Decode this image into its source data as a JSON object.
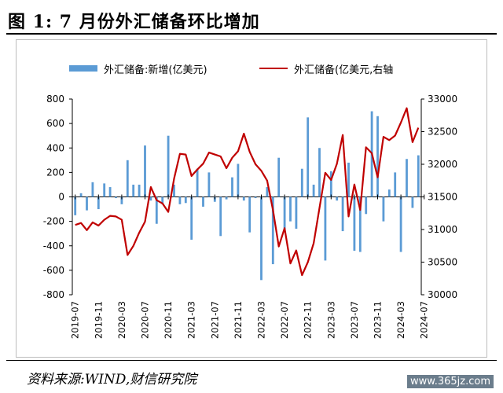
{
  "title": "图 1:  7 月份外汇储备环比增加",
  "source": "资料来源:WIND,财信研究院",
  "watermark": "www.365jz.com",
  "colors": {
    "bar": "#5b9bd5",
    "line": "#c00000"
  },
  "chart_data": {
    "type": "bar+line",
    "x_tick_labels": [
      "2019-07",
      "2019-11",
      "2020-03",
      "2020-07",
      "2020-11",
      "2021-03",
      "2021-07",
      "2021-11",
      "2022-03",
      "2022-07",
      "2022-11",
      "2023-03",
      "2023-07",
      "2023-11",
      "2024-03",
      "2024-07"
    ],
    "y_left": {
      "range": [
        -800,
        800
      ],
      "ticks": [
        -800,
        -600,
        -400,
        -200,
        0,
        200,
        400,
        600,
        800
      ]
    },
    "y_right": {
      "range": [
        30000,
        33000
      ],
      "ticks": [
        30000,
        30500,
        31000,
        31500,
        32000,
        32500,
        33000
      ]
    },
    "grid": false,
    "legend_placement": "top",
    "series": [
      {
        "name": "外汇储备:新增(亿美元)",
        "type": "bar",
        "axis": "left",
        "values": [
          -150,
          30,
          -110,
          120,
          -100,
          110,
          80,
          -10,
          -60,
          300,
          100,
          100,
          420,
          -30,
          -220,
          -60,
          500,
          100,
          -60,
          -50,
          -350,
          230,
          -80,
          200,
          -40,
          -320,
          -20,
          160,
          270,
          -30,
          -290,
          -10,
          -680,
          80,
          -550,
          320,
          -270,
          -200,
          -260,
          230,
          650,
          100,
          400,
          -520,
          210,
          -30,
          -280,
          280,
          -440,
          -450,
          -140,
          700,
          660,
          -200,
          60,
          200,
          -450,
          310,
          -90,
          340
        ]
      },
      {
        "name": "外汇储备(亿美元,右轴",
        "type": "line",
        "axis": "right",
        "values": [
          31070,
          31100,
          30990,
          31110,
          31060,
          31150,
          31210,
          31200,
          31150,
          30610,
          30750,
          30950,
          31120,
          31650,
          31450,
          31400,
          31270,
          31780,
          32160,
          32150,
          31820,
          31920,
          32010,
          32180,
          32150,
          32120,
          31940,
          32100,
          32200,
          32470,
          32190,
          32000,
          31900,
          31750,
          31300,
          30740,
          31020,
          30480,
          30680,
          30300,
          30500,
          30790,
          31330,
          31870,
          31760,
          32010,
          32450,
          31200,
          31690,
          31300,
          32260,
          32170,
          31800,
          32420,
          32370,
          32440,
          32640,
          32860,
          32340,
          32560
        ]
      }
    ]
  }
}
